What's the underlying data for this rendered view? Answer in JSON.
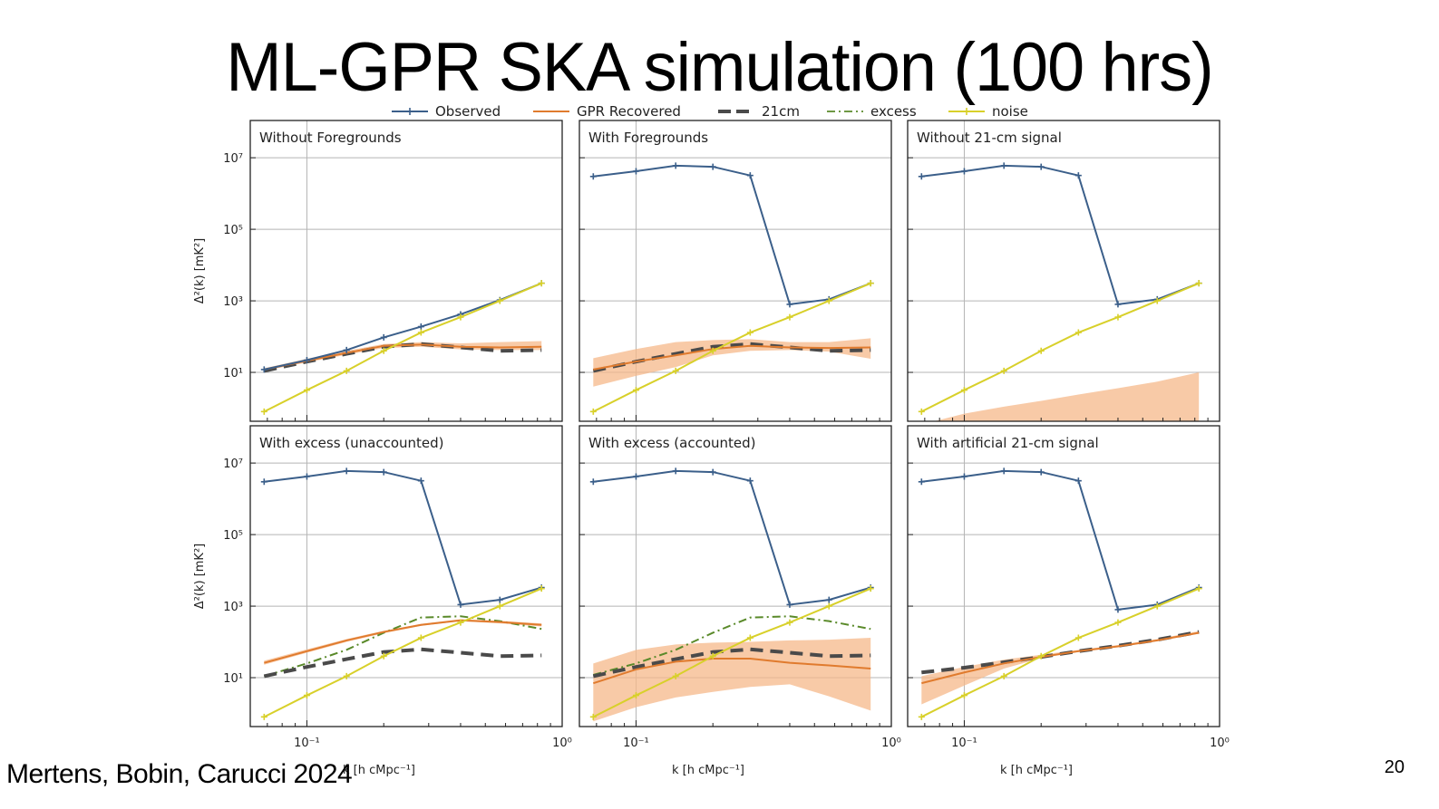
{
  "slide": {
    "title": "ML-GPR SKA simulation (100 hrs)",
    "citation": "Mertens, Bobin, Carucci 2024",
    "page_number": "20"
  },
  "chart_data": {
    "type": "line",
    "layout": "2x3 grid of log-log panels",
    "xlabel": "k [h cMpc⁻¹]",
    "ylabel": "Δ²(k) [mK²]",
    "xscale": "log",
    "yscale": "log",
    "xlim": [
      0.06,
      1.0
    ],
    "ylim": [
      0.43,
      110000000
    ],
    "xticks": [
      {
        "value": 0.1,
        "label": "10⁻¹"
      },
      {
        "value": 1.0,
        "label": "10⁰"
      }
    ],
    "yticks": [
      {
        "value": 10,
        "label": "10¹"
      },
      {
        "value": 1000,
        "label": "10³"
      },
      {
        "value": 100000,
        "label": "10⁵"
      },
      {
        "value": 10000000,
        "label": "10⁷"
      }
    ],
    "grid": true,
    "legend": {
      "placement": "top-center",
      "entries": [
        {
          "key": "observed",
          "label": "Observed",
          "color": "#3b5f8a",
          "style": "solid-marker"
        },
        {
          "key": "gpr",
          "label": "GPR Recovered",
          "color": "#e07b2e",
          "style": "solid"
        },
        {
          "key": "cm21",
          "label": "21cm",
          "color": "#4a4a4a",
          "style": "dashed"
        },
        {
          "key": "excess",
          "label": "excess",
          "color": "#5a8a2a",
          "style": "dashdot"
        },
        {
          "key": "noise",
          "label": "noise",
          "color": "#d8d02a",
          "style": "solid-marker"
        }
      ]
    },
    "band_color": "#f5b88a",
    "k": [
      0.068,
      0.1,
      0.143,
      0.2,
      0.28,
      0.4,
      0.57,
      0.83
    ],
    "noise_values": [
      0.8,
      3.2,
      11,
      40,
      130,
      350,
      1000,
      3100
    ],
    "observed_fg_values": [
      3000000,
      4200000,
      6000000,
      5600000,
      3200000,
      800,
      1100,
      3100
    ],
    "panels": [
      {
        "title": "Without Foregrounds",
        "series": {
          "observed": [
            12,
            22,
            42,
            95,
            190,
            420,
            1050,
            3100
          ],
          "gpr": [
            12,
            21,
            35,
            55,
            60,
            52,
            50,
            52
          ],
          "gpr_band_low": [
            11,
            19,
            31,
            48,
            52,
            44,
            42,
            42
          ],
          "gpr_band_high": [
            13,
            24,
            40,
            62,
            70,
            65,
            70,
            75
          ],
          "cm21": [
            11,
            20,
            33,
            52,
            62,
            50,
            40,
            42
          ],
          "noise": [
            0.8,
            3.2,
            11,
            40,
            130,
            350,
            1000,
            3100
          ]
        }
      },
      {
        "title": "With Foregrounds",
        "series": {
          "observed": [
            3000000,
            4200000,
            6000000,
            5600000,
            3200000,
            800,
            1100,
            3100
          ],
          "gpr": [
            12,
            20,
            30,
            45,
            55,
            50,
            48,
            50
          ],
          "gpr_band_low": [
            4,
            8,
            14,
            30,
            40,
            42,
            38,
            24
          ],
          "gpr_band_high": [
            25,
            45,
            70,
            80,
            85,
            70,
            70,
            90
          ],
          "cm21": [
            11,
            20,
            33,
            52,
            62,
            50,
            40,
            42
          ],
          "noise": [
            0.8,
            3.2,
            11,
            40,
            130,
            350,
            1000,
            3100
          ]
        }
      },
      {
        "title": "Without 21-cm signal",
        "series": {
          "observed": [
            3000000,
            4200000,
            6000000,
            5600000,
            3200000,
            800,
            1100,
            3100
          ],
          "gpr_band_low": [
            0.3,
            0.3,
            0.3,
            0.3,
            0.3,
            0.3,
            0.3,
            0.3
          ],
          "gpr_band_high": [
            0.35,
            0.7,
            1.1,
            1.6,
            2.4,
            3.6,
            5.5,
            10
          ],
          "noise": [
            0.8,
            3.2,
            11,
            40,
            130,
            350,
            1000,
            3100
          ]
        }
      },
      {
        "title": "With excess (unaccounted)",
        "series": {
          "observed": [
            3000000,
            4200000,
            6000000,
            5600000,
            3200000,
            1100,
            1500,
            3300
          ],
          "gpr": [
            26,
            55,
            110,
            190,
            300,
            400,
            360,
            300
          ],
          "gpr_band_low": [
            23,
            50,
            100,
            175,
            280,
            380,
            330,
            270
          ],
          "gpr_band_high": [
            30,
            62,
            120,
            205,
            320,
            430,
            390,
            330
          ],
          "excess": [
            11,
            25,
            60,
            180,
            480,
            520,
            380,
            230
          ],
          "cm21": [
            11,
            20,
            33,
            52,
            62,
            50,
            40,
            42
          ],
          "noise": [
            0.8,
            3.2,
            11,
            40,
            130,
            350,
            1000,
            3100
          ]
        }
      },
      {
        "title": "With excess (accounted)",
        "series": {
          "observed": [
            3000000,
            4200000,
            6000000,
            5600000,
            3200000,
            1100,
            1500,
            3300
          ],
          "gpr": [
            7,
            17,
            28,
            34,
            34,
            26,
            22,
            18
          ],
          "gpr_band_low": [
            0.6,
            1.5,
            2.8,
            4,
            5.5,
            6.5,
            3,
            1.2
          ],
          "gpr_band_high": [
            25,
            60,
            85,
            95,
            100,
            110,
            115,
            130
          ],
          "excess": [
            12,
            25,
            60,
            180,
            480,
            520,
            380,
            230
          ],
          "cm21": [
            11,
            20,
            33,
            52,
            62,
            50,
            40,
            42
          ],
          "noise": [
            0.8,
            3.2,
            11,
            40,
            130,
            350,
            1000,
            3100
          ]
        }
      },
      {
        "title": "With artificial 21-cm signal",
        "series": {
          "observed": [
            3000000,
            4200000,
            6000000,
            5600000,
            3200000,
            800,
            1100,
            3300
          ],
          "gpr": [
            7,
            14,
            25,
            38,
            55,
            75,
            110,
            180
          ],
          "gpr_band_low": [
            1.8,
            6,
            18,
            35,
            52,
            72,
            105,
            170
          ],
          "gpr_band_high": [
            11,
            20,
            32,
            44,
            60,
            82,
            120,
            200
          ],
          "cm21": [
            14,
            19,
            27,
            38,
            55,
            78,
            115,
            190
          ],
          "noise": [
            0.8,
            3.2,
            11,
            40,
            130,
            350,
            1000,
            3100
          ]
        }
      }
    ]
  }
}
